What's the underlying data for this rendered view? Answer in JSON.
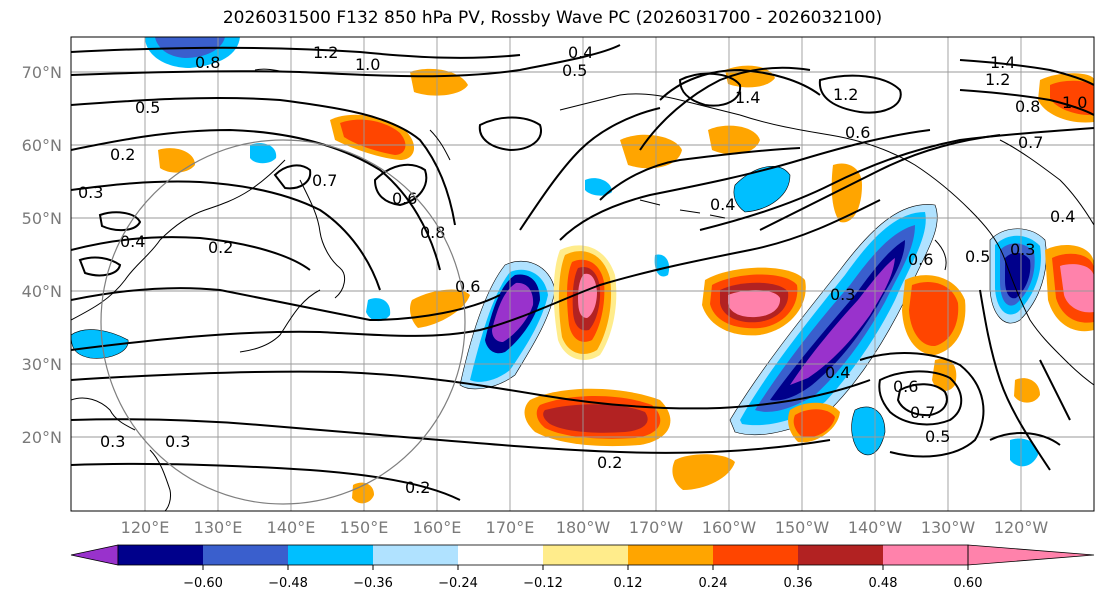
{
  "title": "2026031500 F132 850 hPa PV, Rossby Wave PC (2026031700 - 2026032100)",
  "lat_labels": [
    "70°N",
    "60°N",
    "50°N",
    "40°N",
    "30°N",
    "20°N"
  ],
  "lon_labels": [
    "120°E",
    "130°E",
    "140°E",
    "150°E",
    "160°E",
    "170°E",
    "180°W",
    "170°W",
    "160°W",
    "150°W",
    "140°W",
    "130°W",
    "120°W"
  ],
  "colorbar": {
    "ticks": [
      "−0.60",
      "−0.48",
      "−0.36",
      "−0.24",
      "−0.12",
      "0.12",
      "0.24",
      "0.36",
      "0.48",
      "0.60"
    ],
    "colors": [
      "#9932cc",
      "#00008b",
      "#3a5fcd",
      "#00bfff",
      "#b0e2ff",
      "#ffffff",
      "#ffec8b",
      "#ffa500",
      "#ff4500",
      "#b22222",
      "#ff82ab"
    ]
  },
  "contour_labels": [
    "1.2",
    "0.8",
    "1.0",
    "0.5",
    "0.4",
    "0.5",
    "0.2",
    "0.3",
    "0.4",
    "0.7",
    "0.6",
    "0.8",
    "0.2",
    "0.6",
    "0.3",
    "0.2",
    "0.3",
    "0.2",
    "1.4",
    "1.2",
    "0.6",
    "0.4",
    "0.3",
    "0.4",
    "0.7",
    "0.5",
    "0.6",
    "1.4",
    "1.2",
    "1.0",
    "0.8",
    "0.7",
    "0.4",
    "0.3",
    "0.5",
    "0.6"
  ]
}
